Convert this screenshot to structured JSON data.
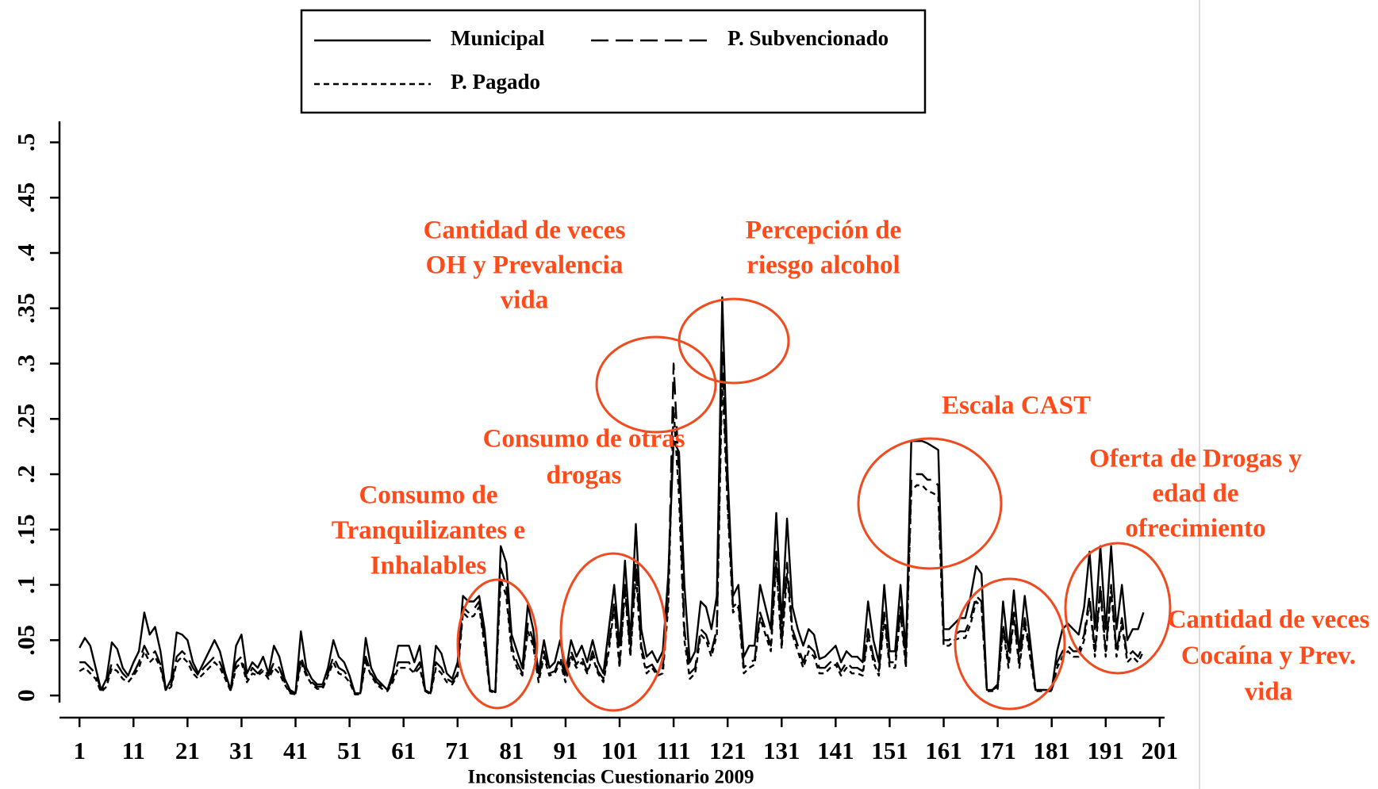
{
  "chart_data": {
    "type": "line",
    "x_label": "Inconsistencias  Cuestionario 2009",
    "x": [
      1,
      2,
      3,
      4,
      5,
      6,
      7,
      8,
      9,
      10,
      11,
      12,
      13,
      14,
      15,
      16,
      17,
      18,
      19,
      20,
      21,
      22,
      23,
      24,
      25,
      26,
      27,
      28,
      29,
      30,
      31,
      32,
      33,
      34,
      35,
      36,
      37,
      38,
      39,
      40,
      41,
      42,
      43,
      44,
      45,
      46,
      47,
      48,
      49,
      50,
      51,
      52,
      53,
      54,
      55,
      56,
      57,
      58,
      59,
      60,
      61,
      62,
      63,
      64,
      65,
      66,
      67,
      68,
      69,
      70,
      71,
      72,
      73,
      74,
      75,
      76,
      77,
      78,
      79,
      80,
      81,
      82,
      83,
      84,
      85,
      86,
      87,
      88,
      89,
      90,
      91,
      92,
      93,
      94,
      95,
      96,
      97,
      98,
      99,
      100,
      101,
      102,
      103,
      104,
      105,
      106,
      107,
      108,
      109,
      110,
      111,
      112,
      113,
      114,
      115,
      116,
      117,
      118,
      119,
      120,
      121,
      122,
      123,
      124,
      125,
      126,
      127,
      128,
      129,
      130,
      131,
      132,
      133,
      134,
      135,
      136,
      137,
      138,
      139,
      140,
      141,
      142,
      143,
      144,
      145,
      146,
      147,
      148,
      149,
      150,
      151,
      152,
      153,
      154,
      155,
      156,
      157,
      158,
      159,
      160,
      161,
      162,
      163,
      164,
      165,
      166,
      167,
      168,
      169,
      170,
      171,
      172,
      173,
      174,
      175,
      176,
      177,
      178,
      179,
      180,
      181,
      182,
      183,
      184,
      185,
      186,
      187,
      188,
      189,
      190,
      191,
      192,
      193,
      194,
      195,
      196,
      197,
      198
    ],
    "series": [
      {
        "name": "Municipal",
        "color": "#000000",
        "dash": "solid",
        "values": [
          0.043,
          0.052,
          0.045,
          0.025,
          0.005,
          0.015,
          0.048,
          0.042,
          0.025,
          0.018,
          0.03,
          0.04,
          0.075,
          0.055,
          0.062,
          0.04,
          0.005,
          0.015,
          0.057,
          0.055,
          0.05,
          0.03,
          0.02,
          0.03,
          0.04,
          0.05,
          0.04,
          0.02,
          0.005,
          0.045,
          0.055,
          0.02,
          0.03,
          0.025,
          0.035,
          0.02,
          0.045,
          0.035,
          0.015,
          0.005,
          0.002,
          0.058,
          0.025,
          0.015,
          0.01,
          0.01,
          0.025,
          0.05,
          0.035,
          0.03,
          0.018,
          0.002,
          0.002,
          0.052,
          0.025,
          0.015,
          0.01,
          0.005,
          0.02,
          0.045,
          0.045,
          0.045,
          0.03,
          0.045,
          0.005,
          0.002,
          0.045,
          0.038,
          0.02,
          0.015,
          0.03,
          0.09,
          0.085,
          0.085,
          0.09,
          0.06,
          0.005,
          0.003,
          0.135,
          0.12,
          0.055,
          0.04,
          0.025,
          0.082,
          0.06,
          0.02,
          0.05,
          0.025,
          0.03,
          0.05,
          0.02,
          0.05,
          0.035,
          0.045,
          0.03,
          0.05,
          0.03,
          0.02,
          0.06,
          0.1,
          0.045,
          0.122,
          0.05,
          0.155,
          0.06,
          0.035,
          0.04,
          0.03,
          0.04,
          0.108,
          0.23,
          0.22,
          0.1,
          0.03,
          0.04,
          0.085,
          0.08,
          0.06,
          0.09,
          0.36,
          0.2,
          0.09,
          0.1,
          0.035,
          0.045,
          0.045,
          0.1,
          0.08,
          0.06,
          0.165,
          0.065,
          0.16,
          0.08,
          0.06,
          0.045,
          0.06,
          0.055,
          0.033,
          0.035,
          0.04,
          0.045,
          0.03,
          0.04,
          0.035,
          0.035,
          0.03,
          0.085,
          0.05,
          0.03,
          0.1,
          0.04,
          0.04,
          0.1,
          0.04,
          0.23,
          0.23,
          0.23,
          0.228,
          0.225,
          0.222,
          0.06,
          0.06,
          0.065,
          0.07,
          0.07,
          0.09,
          0.117,
          0.11,
          0.005,
          0.005,
          0.01,
          0.085,
          0.04,
          0.095,
          0.04,
          0.09,
          0.05,
          0.005,
          0.005,
          0.005,
          0.005,
          0.04,
          0.06,
          0.065,
          0.06,
          0.055,
          0.08,
          0.13,
          0.06,
          0.135,
          0.06,
          0.135,
          0.06,
          0.1,
          0.05,
          0.06,
          0.06,
          0.075
        ]
      },
      {
        "name": "P. Subvencionado",
        "color": "#000000",
        "dash": "long",
        "values": [
          0.03,
          0.03,
          0.025,
          0.02,
          0.005,
          0.01,
          0.03,
          0.028,
          0.02,
          0.015,
          0.02,
          0.03,
          0.045,
          0.035,
          0.04,
          0.028,
          0.005,
          0.01,
          0.035,
          0.04,
          0.035,
          0.025,
          0.018,
          0.025,
          0.03,
          0.035,
          0.03,
          0.018,
          0.005,
          0.03,
          0.035,
          0.015,
          0.025,
          0.02,
          0.025,
          0.018,
          0.03,
          0.025,
          0.012,
          0.003,
          0.002,
          0.035,
          0.02,
          0.012,
          0.008,
          0.008,
          0.02,
          0.035,
          0.025,
          0.022,
          0.015,
          0.002,
          0.002,
          0.035,
          0.02,
          0.012,
          0.008,
          0.005,
          0.015,
          0.03,
          0.03,
          0.03,
          0.022,
          0.03,
          0.005,
          0.002,
          0.03,
          0.025,
          0.015,
          0.012,
          0.02,
          0.08,
          0.075,
          0.078,
          0.085,
          0.05,
          0.005,
          0.003,
          0.115,
          0.1,
          0.045,
          0.03,
          0.02,
          0.065,
          0.05,
          0.015,
          0.04,
          0.02,
          0.022,
          0.035,
          0.015,
          0.04,
          0.028,
          0.035,
          0.022,
          0.04,
          0.022,
          0.015,
          0.045,
          0.085,
          0.03,
          0.1,
          0.04,
          0.12,
          0.045,
          0.025,
          0.028,
          0.02,
          0.025,
          0.09,
          0.3,
          0.2,
          0.06,
          0.02,
          0.025,
          0.06,
          0.055,
          0.04,
          0.06,
          0.31,
          0.18,
          0.08,
          0.085,
          0.025,
          0.03,
          0.032,
          0.075,
          0.06,
          0.045,
          0.13,
          0.048,
          0.12,
          0.06,
          0.045,
          0.03,
          0.045,
          0.04,
          0.025,
          0.025,
          0.03,
          0.032,
          0.022,
          0.03,
          0.025,
          0.025,
          0.022,
          0.06,
          0.035,
          0.022,
          0.075,
          0.03,
          0.03,
          0.08,
          0.03,
          0.195,
          0.2,
          0.2,
          0.195,
          0.195,
          0.19,
          0.05,
          0.05,
          0.055,
          0.058,
          0.058,
          0.07,
          0.09,
          0.085,
          0.005,
          0.005,
          0.008,
          0.065,
          0.03,
          0.075,
          0.03,
          0.07,
          0.04,
          0.005,
          0.005,
          0.005,
          0.005,
          0.03,
          0.04,
          0.045,
          0.04,
          0.04,
          0.055,
          0.09,
          0.04,
          0.1,
          0.04,
          0.1,
          0.04,
          0.07,
          0.035,
          0.04,
          0.035,
          0.045
        ]
      },
      {
        "name": "P. Pagado",
        "color": "#000000",
        "dash": "short",
        "values": [
          0.022,
          0.025,
          0.02,
          0.015,
          0.003,
          0.008,
          0.025,
          0.022,
          0.015,
          0.012,
          0.018,
          0.025,
          0.04,
          0.03,
          0.035,
          0.025,
          0.004,
          0.008,
          0.03,
          0.035,
          0.03,
          0.02,
          0.015,
          0.02,
          0.025,
          0.03,
          0.025,
          0.015,
          0.004,
          0.025,
          0.03,
          0.012,
          0.02,
          0.018,
          0.022,
          0.015,
          0.025,
          0.02,
          0.01,
          0.002,
          0.001,
          0.03,
          0.018,
          0.01,
          0.006,
          0.006,
          0.018,
          0.03,
          0.02,
          0.018,
          0.012,
          0.001,
          0.001,
          0.03,
          0.018,
          0.01,
          0.006,
          0.004,
          0.012,
          0.025,
          0.025,
          0.025,
          0.02,
          0.025,
          0.004,
          0.001,
          0.025,
          0.02,
          0.012,
          0.01,
          0.018,
          0.075,
          0.07,
          0.072,
          0.08,
          0.045,
          0.004,
          0.002,
          0.105,
          0.09,
          0.04,
          0.025,
          0.018,
          0.058,
          0.045,
          0.012,
          0.035,
          0.018,
          0.02,
          0.03,
          0.012,
          0.035,
          0.025,
          0.03,
          0.02,
          0.035,
          0.02,
          0.012,
          0.04,
          0.08,
          0.025,
          0.095,
          0.035,
          0.11,
          0.04,
          0.02,
          0.025,
          0.018,
          0.02,
          0.08,
          0.26,
          0.18,
          0.05,
          0.015,
          0.02,
          0.055,
          0.05,
          0.035,
          0.055,
          0.29,
          0.17,
          0.075,
          0.08,
          0.02,
          0.025,
          0.028,
          0.07,
          0.055,
          0.04,
          0.12,
          0.042,
          0.11,
          0.055,
          0.04,
          0.025,
          0.04,
          0.035,
          0.02,
          0.02,
          0.025,
          0.028,
          0.018,
          0.025,
          0.02,
          0.02,
          0.018,
          0.055,
          0.03,
          0.018,
          0.07,
          0.025,
          0.025,
          0.075,
          0.025,
          0.185,
          0.19,
          0.19,
          0.185,
          0.183,
          0.18,
          0.045,
          0.045,
          0.05,
          0.052,
          0.052,
          0.065,
          0.085,
          0.08,
          0.004,
          0.004,
          0.006,
          0.06,
          0.025,
          0.07,
          0.025,
          0.065,
          0.035,
          0.004,
          0.004,
          0.004,
          0.004,
          0.025,
          0.035,
          0.04,
          0.035,
          0.035,
          0.05,
          0.085,
          0.035,
          0.095,
          0.035,
          0.095,
          0.035,
          0.065,
          0.03,
          0.035,
          0.03,
          0.04
        ]
      }
    ],
    "xlim": [
      -2.7,
      201.9
    ],
    "xticks": [
      1,
      11,
      21,
      31,
      41,
      51,
      61,
      71,
      81,
      91,
      101,
      111,
      121,
      131,
      141,
      151,
      161,
      171,
      181,
      191,
      201
    ],
    "ylim": [
      -0.0064,
      0.519
    ],
    "yticks": [
      0,
      {
        "value": 0.05,
        "label": ".05"
      },
      {
        "value": 0.1,
        "label": ".1"
      },
      {
        "value": 0.15,
        "label": ".15"
      },
      {
        "value": 0.2,
        "label": ".2"
      },
      {
        "value": 0.25,
        "label": ".25"
      },
      {
        "value": 0.3,
        "label": ".3"
      },
      {
        "value": 0.35,
        "label": ".35"
      },
      {
        "value": 0.4,
        "label": ".4"
      },
      {
        "value": 0.45,
        "label": ".45"
      },
      {
        "value": 0.5,
        "label": ".5"
      }
    ],
    "grid": true,
    "legend": "top",
    "annotation_color": "#ff4a1a",
    "annotations": [
      {
        "lines": [
          "Cantidad de veces",
          "OH y Prevalencia",
          "vida"
        ]
      },
      {
        "lines": [
          "Percepción de",
          "riesgo alcohol"
        ]
      },
      {
        "lines": [
          "Escala CAST"
        ]
      },
      {
        "lines": [
          "Consumo de otras",
          "drogas"
        ]
      },
      {
        "lines": [
          "Consumo de",
          "Tranquilizantes e",
          "Inhalables"
        ]
      },
      {
        "lines": [
          "Oferta de Drogas y",
          "edad de",
          "ofrecimiento"
        ]
      },
      {
        "lines": [
          "Cantidad de veces",
          "Cocaína  y Prev.",
          "vida"
        ]
      }
    ]
  }
}
